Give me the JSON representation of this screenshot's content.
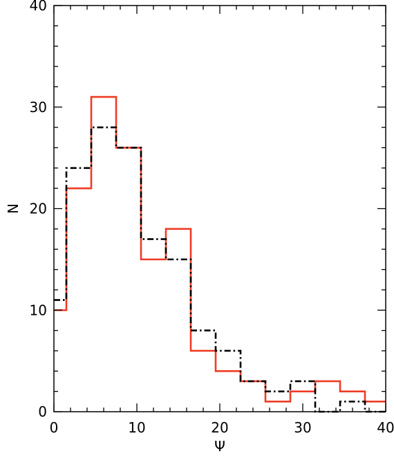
{
  "chart_data": {
    "type": "line",
    "subtype": "step-histogram",
    "xlabel": "Ψ",
    "ylabel": "N",
    "xlim": [
      0,
      40
    ],
    "ylim": [
      0,
      40
    ],
    "xticks": [
      "0",
      "10",
      "20",
      "30",
      "40"
    ],
    "yticks": [
      "0",
      "10",
      "20",
      "30",
      "40"
    ],
    "grid": false,
    "bin_edges": [
      -1.5,
      1.5,
      4.5,
      7.5,
      10.5,
      13.5,
      16.5,
      19.5,
      22.5,
      25.5,
      28.5,
      31.5,
      34.5,
      37.5,
      40.5
    ],
    "series": [
      {
        "style": "solid",
        "color": "#ef3b24",
        "values": [
          10,
          22,
          31,
          26,
          15,
          18,
          6,
          4,
          3,
          1,
          2,
          3,
          2,
          1
        ]
      },
      {
        "style": "dash-dot",
        "color": "#000000",
        "values": [
          11,
          24,
          28,
          26,
          17,
          15,
          8,
          6,
          3,
          2,
          3,
          0,
          1,
          0
        ]
      }
    ]
  }
}
